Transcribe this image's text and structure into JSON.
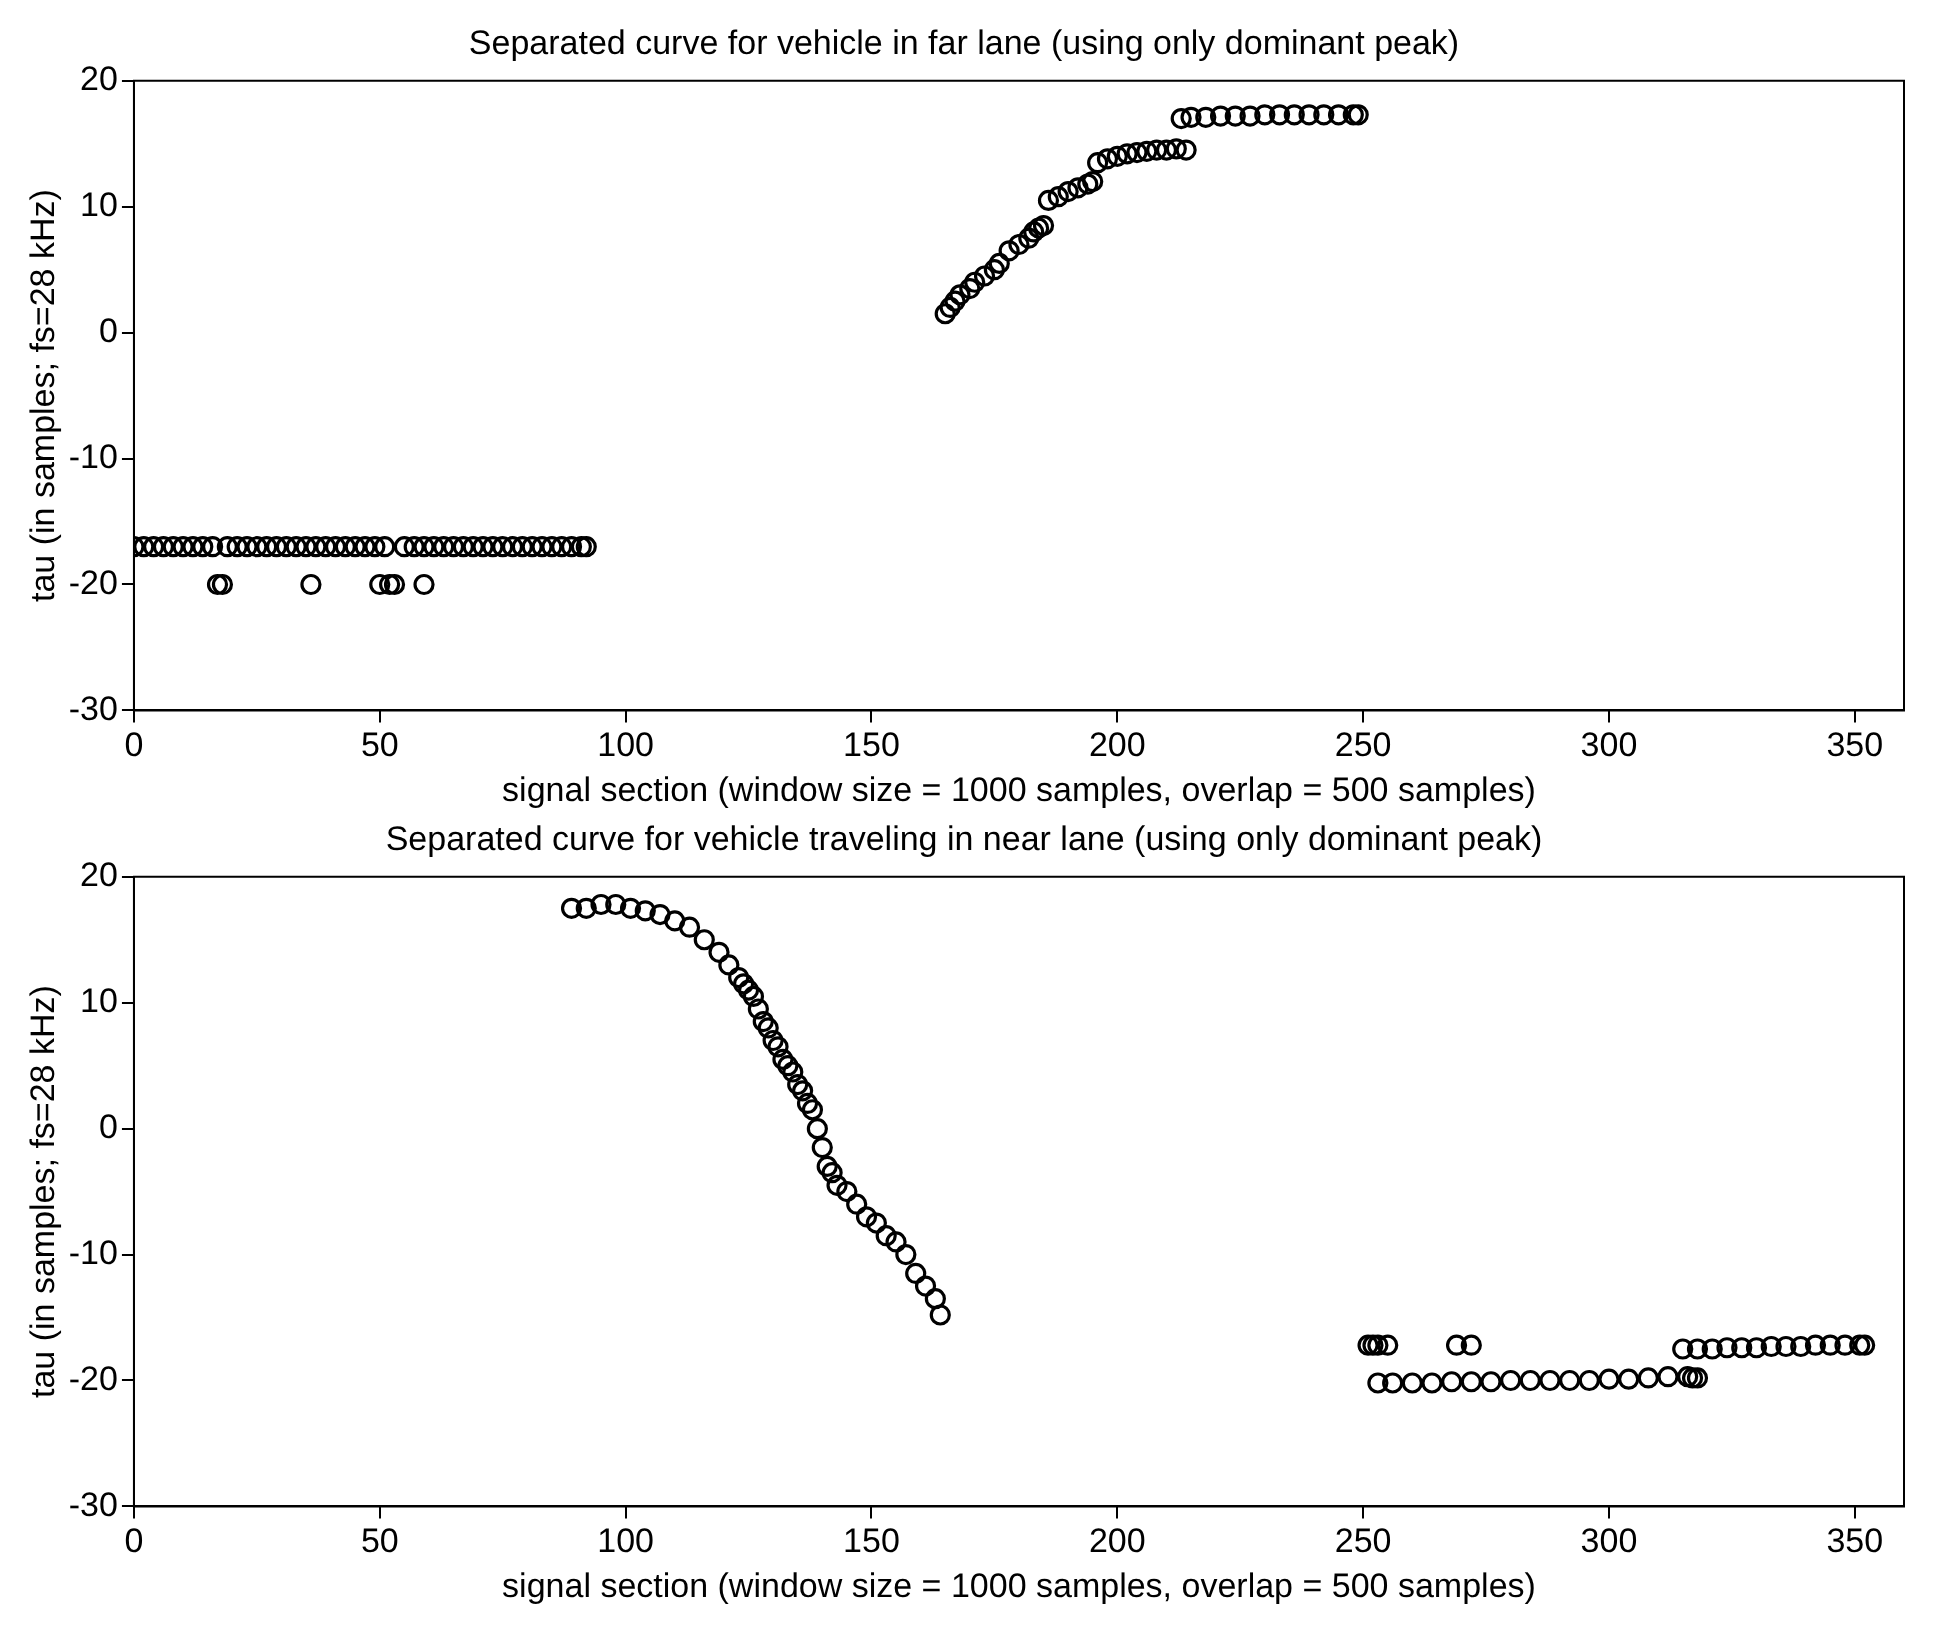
{
  "chart_data": [
    {
      "type": "scatter",
      "title": "Separated curve for vehicle in far lane (using only dominant peak)",
      "xlabel": "signal section (window size = 1000 samples, overlap = 500 samples)",
      "ylabel": "tau (in samples; fs=28 kHz)",
      "xlim": [
        0,
        360
      ],
      "ylim": [
        -30,
        20
      ],
      "xticks": [
        0,
        50,
        100,
        150,
        200,
        250,
        300,
        350
      ],
      "yticks": [
        -30,
        -20,
        -10,
        0,
        10,
        20
      ],
      "grid": false,
      "marker": "circle",
      "legend": false,
      "series": [
        {
          "color": "#000000",
          "x": [
            0,
            2,
            4,
            6,
            8,
            10,
            12,
            14,
            16,
            17,
            18,
            19,
            21,
            23,
            25,
            27,
            29,
            31,
            33,
            35,
            36,
            37,
            39,
            41,
            43,
            45,
            47,
            49,
            50,
            51,
            52,
            53,
            55,
            57,
            59,
            59,
            61,
            63,
            65,
            67,
            69,
            71,
            73,
            75,
            77,
            79,
            81,
            83,
            85,
            87,
            89,
            91,
            92,
            165,
            166,
            167,
            168,
            170,
            171,
            173,
            175,
            176,
            178,
            180,
            182,
            183,
            184,
            185,
            186,
            188,
            190,
            192,
            194,
            195,
            196,
            198,
            200,
            202,
            204,
            206,
            208,
            210,
            212,
            214,
            213,
            215,
            218,
            221,
            224,
            227,
            230,
            233,
            236,
            239,
            242,
            245,
            248,
            249
          ],
          "values": [
            -17,
            -17,
            -17,
            -17,
            -17,
            -17,
            -17,
            -17,
            -17,
            -20,
            -20,
            -17,
            -17,
            -17,
            -17,
            -17,
            -17,
            -17,
            -17,
            -17,
            -20,
            -17,
            -17,
            -17,
            -17,
            -17,
            -17,
            -17,
            -20,
            -17,
            -20,
            -20,
            -17,
            -17,
            -20,
            -17,
            -17,
            -17,
            -17,
            -17,
            -17,
            -17,
            -17,
            -17,
            -17,
            -17,
            -17,
            -17,
            -17,
            -17,
            -17,
            -17,
            -17,
            1.5,
            2,
            2.5,
            3,
            3.5,
            4,
            4.5,
            5,
            5.5,
            6.5,
            7,
            7.5,
            8,
            8.3,
            8.5,
            10.5,
            10.8,
            11.2,
            11.5,
            11.8,
            12,
            13.5,
            13.8,
            14,
            14.2,
            14.3,
            14.4,
            14.5,
            14.5,
            14.6,
            14.5,
            17,
            17.1,
            17.1,
            17.2,
            17.2,
            17.2,
            17.3,
            17.3,
            17.3,
            17.3,
            17.3,
            17.3,
            17.3,
            17.3
          ]
        }
      ]
    },
    {
      "type": "scatter",
      "title": "Separated curve for vehicle traveling in near lane (using only dominant peak)",
      "xlabel": "signal section (window size = 1000 samples, overlap = 500 samples)",
      "ylabel": "tau (in samples; fs=28 kHz)",
      "xlim": [
        0,
        360
      ],
      "ylim": [
        -30,
        20
      ],
      "xticks": [
        0,
        50,
        100,
        150,
        200,
        250,
        300,
        350
      ],
      "yticks": [
        -30,
        -20,
        -10,
        0,
        10,
        20
      ],
      "grid": false,
      "marker": "circle",
      "legend": false,
      "series": [
        {
          "color": "#000000",
          "x": [
            89,
            92,
            95,
            98,
            101,
            104,
            107,
            110,
            113,
            116,
            119,
            121,
            123,
            124,
            125,
            126,
            127,
            128,
            129,
            130,
            131,
            132,
            133,
            134,
            135,
            136,
            137,
            138,
            139,
            140,
            141,
            142,
            143,
            145,
            147,
            149,
            151,
            153,
            155,
            157,
            159,
            161,
            163,
            164,
            251,
            252,
            253,
            255,
            269,
            272,
            253,
            256,
            260,
            264,
            268,
            272,
            276,
            280,
            284,
            288,
            292,
            296,
            300,
            304,
            308,
            312,
            316,
            317,
            318,
            315,
            318,
            321,
            324,
            327,
            330,
            333,
            336,
            339,
            342,
            345,
            348,
            351,
            352
          ],
          "values": [
            17.5,
            17.5,
            17.8,
            17.8,
            17.5,
            17.3,
            17,
            16.5,
            16,
            15,
            14,
            13,
            12,
            11.5,
            11,
            10.5,
            9.5,
            8.5,
            8,
            7,
            6.5,
            5.5,
            5,
            4.5,
            3.5,
            3,
            2,
            1.5,
            0,
            -1.5,
            -3,
            -3.5,
            -4.5,
            -5,
            -6,
            -7,
            -7.5,
            -8.5,
            -9,
            -10,
            -11.5,
            -12.5,
            -13.5,
            -14.8,
            -17.2,
            -17.2,
            -17.2,
            -17.2,
            -17.2,
            -17.2,
            -20.2,
            -20.2,
            -20.2,
            -20.2,
            -20.1,
            -20.1,
            -20.1,
            -20,
            -20,
            -20,
            -20,
            -20,
            -19.9,
            -19.9,
            -19.8,
            -19.7,
            -19.7,
            -19.8,
            -19.8,
            -17.5,
            -17.5,
            -17.5,
            -17.4,
            -17.4,
            -17.4,
            -17.3,
            -17.3,
            -17.3,
            -17.2,
            -17.2,
            -17.2,
            -17.2,
            -17.2
          ]
        }
      ]
    }
  ]
}
